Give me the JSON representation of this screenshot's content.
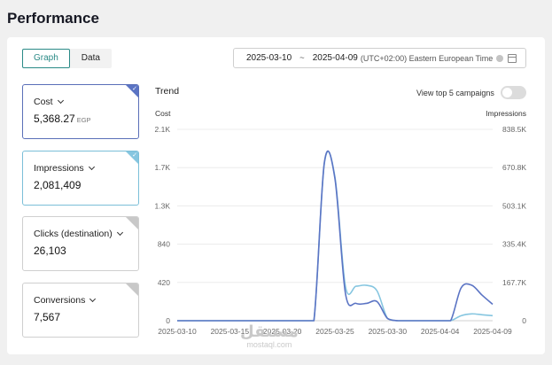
{
  "page": {
    "title": "Performance"
  },
  "tabs": [
    {
      "label": "Graph",
      "active": true
    },
    {
      "label": "Data",
      "active": false
    }
  ],
  "date_range": {
    "start": "2025-03-10",
    "separator": "~",
    "end": "2025-04-09",
    "timezone": "(UTC+02:00) Eastern European Time"
  },
  "metrics": [
    {
      "label": "Cost",
      "value": "5,368.27",
      "unit": "EGP",
      "selected": true,
      "color": "#5b74c4"
    },
    {
      "label": "Impressions",
      "value": "2,081,409",
      "unit": "",
      "selected": true,
      "color": "#86c6e0"
    },
    {
      "label": "Clicks (destination)",
      "value": "26,103",
      "unit": "",
      "selected": false,
      "color": "#c8c8c8"
    },
    {
      "label": "Conversions",
      "value": "7,567",
      "unit": "",
      "selected": false,
      "color": "#c8c8c8"
    }
  ],
  "trend": {
    "label": "Trend",
    "top5_label": "View top 5 campaigns",
    "top5_enabled": false
  },
  "chart_data": {
    "type": "line",
    "ylabel_left": "Cost",
    "ylabel_right": "Impressions",
    "y_left_ticks": [
      "0",
      "420",
      "840",
      "1.3K",
      "1.7K",
      "2.1K"
    ],
    "y_right_ticks": [
      "0",
      "167.7K",
      "335.4K",
      "503.1K",
      "670.8K",
      "838.5K"
    ],
    "ylim_left": [
      0,
      2100
    ],
    "ylim_right": [
      0,
      838500
    ],
    "x_ticks": [
      "2025-03-10",
      "2025-03-15",
      "2025-03-20",
      "2025-03-25",
      "2025-03-30",
      "2025-04-04",
      "2025-04-09"
    ],
    "x": [
      "2025-03-10",
      "2025-03-11",
      "2025-03-12",
      "2025-03-13",
      "2025-03-14",
      "2025-03-15",
      "2025-03-16",
      "2025-03-17",
      "2025-03-18",
      "2025-03-19",
      "2025-03-20",
      "2025-03-21",
      "2025-03-22",
      "2025-03-23",
      "2025-03-24",
      "2025-03-25",
      "2025-03-26",
      "2025-03-27",
      "2025-03-28",
      "2025-03-29",
      "2025-03-30",
      "2025-03-31",
      "2025-04-01",
      "2025-04-02",
      "2025-04-03",
      "2025-04-04",
      "2025-04-05",
      "2025-04-06",
      "2025-04-07",
      "2025-04-08",
      "2025-04-09"
    ],
    "series": [
      {
        "name": "Cost",
        "axis": "left",
        "color": "#5b74c4",
        "values": [
          0,
          0,
          0,
          0,
          0,
          0,
          0,
          0,
          0,
          0,
          0,
          0,
          0,
          0,
          1740,
          1560,
          300,
          190,
          190,
          210,
          25,
          0,
          0,
          0,
          0,
          0,
          0,
          360,
          390,
          280,
          180
        ]
      },
      {
        "name": "Impressions",
        "axis": "right",
        "color": "#86c6e0",
        "values": [
          0,
          0,
          0,
          0,
          0,
          0,
          0,
          0,
          0,
          0,
          0,
          0,
          0,
          0,
          691000,
          630000,
          151000,
          151000,
          155000,
          131000,
          10000,
          0,
          0,
          0,
          0,
          0,
          0,
          22000,
          30000,
          26000,
          22000
        ]
      }
    ],
    "grid": true
  },
  "watermark": {
    "arabic": "مستقل",
    "latin": "mostaql.com"
  }
}
